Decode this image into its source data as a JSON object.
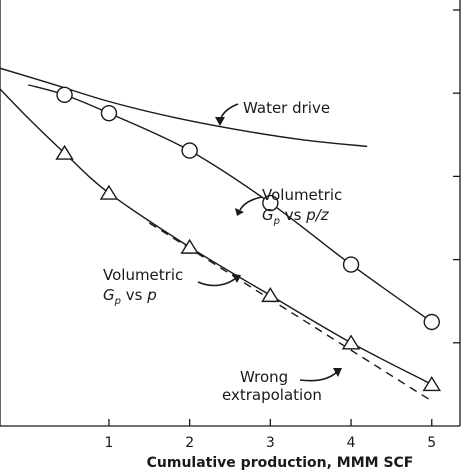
{
  "chart_data": {
    "type": "line",
    "xlabel": "Cumulative production, MMM SCF",
    "ylabel": "",
    "title": "",
    "xlim": [
      -0.35,
      5.35
    ],
    "ylim": [
      0,
      5.12
    ],
    "x_ticks": [
      "1",
      "2",
      "3",
      "4",
      "5"
    ],
    "grid": false,
    "series": [
      {
        "name": "Water drive",
        "style": "solid",
        "marker": "none",
        "x": [
          -0.35,
          0.3,
          1.0,
          1.8,
          2.6,
          3.4,
          4.2
        ],
        "y": [
          4.3,
          4.11,
          3.9,
          3.71,
          3.56,
          3.44,
          3.36
        ]
      },
      {
        "name": "Volumetric Gp vs p/z",
        "style": "solid",
        "marker": "circle",
        "x": [
          0.0,
          0.45,
          1.0,
          2.0,
          3.0,
          4.0,
          5.0
        ],
        "y": [
          4.1,
          3.98,
          3.76,
          3.31,
          2.68,
          1.94,
          1.25
        ]
      },
      {
        "name": "Volumetric Gp vs p",
        "style": "solid",
        "marker": "triangle",
        "x": [
          -0.35,
          0.0,
          0.45,
          1.0,
          2.0,
          3.0,
          4.0,
          5.0
        ],
        "y": [
          4.05,
          3.7,
          3.28,
          2.8,
          2.15,
          1.57,
          1.0,
          0.5
        ]
      },
      {
        "name": "Wrong extrapolation",
        "style": "dashed",
        "marker": "none",
        "x": [
          1.5,
          5.0
        ],
        "y": [
          2.44,
          0.3
        ]
      }
    ],
    "annotations": [
      {
        "text": "Water drive"
      },
      {
        "text": "Volumetric",
        "subtext": "Gp vs p/z"
      },
      {
        "text": "Volumetric",
        "subtext": "Gp vs p"
      },
      {
        "text": "Wrong",
        "subtext": "extrapolation"
      }
    ]
  }
}
